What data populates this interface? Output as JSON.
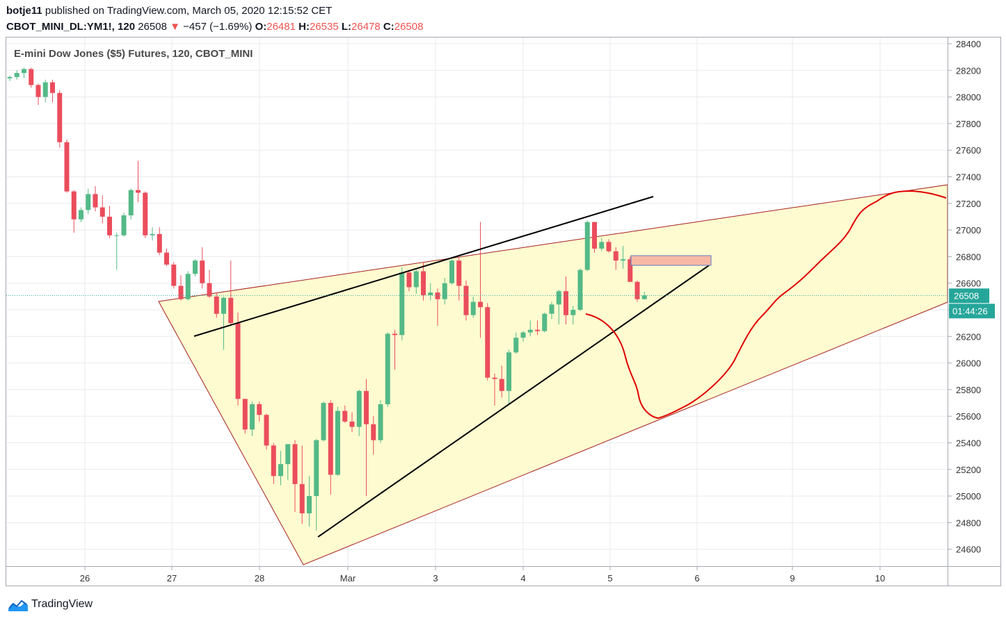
{
  "header": {
    "author": "botje11",
    "published_text": "published on TradingView.com, March 05, 2020 12:15:52 CET",
    "symbol": "CBOT_MINI_DL:YM1!, 120",
    "last": "26508",
    "change": "−457 (−1.69%)",
    "open_label": "O:",
    "open": "26481",
    "high_label": "H:",
    "high": "26535",
    "low_label": "L:",
    "low": "26478",
    "close_label": "C:",
    "close": "26508",
    "down_arrow": "▼"
  },
  "brand": {
    "name": "TradingView"
  },
  "colors": {
    "up": "#26a69a",
    "up_body": "#53b987",
    "down": "#ef5350",
    "down_body": "#eb4d5c",
    "wedge_fill": "#fffbd0",
    "wedge_stroke": "#a31f1f",
    "trend_line": "#000000",
    "forecast": "#e00000",
    "price_label": "#26a69a",
    "zone_fill": "#f7b9a5",
    "zone_stroke": "#5c7cc7"
  },
  "chart_data": {
    "type": "candlestick",
    "title": "E-mini Dow Jones ($5) Futures, 120, CBOT_MINI",
    "y_ticks": [
      28400,
      28200,
      28000,
      27800,
      27600,
      27400,
      27200,
      27000,
      26800,
      26600,
      26400,
      26200,
      26000,
      25800,
      25600,
      25400,
      25200,
      25000,
      24800,
      24600
    ],
    "ylim": [
      24490,
      28450
    ],
    "x_tick_labels": [
      "26",
      "27",
      "28",
      "Mar",
      "3",
      "4",
      "5",
      "6",
      "9",
      "10"
    ],
    "current_price": "26508",
    "countdown": "01:44:26",
    "candles": [
      [
        28140,
        28160,
        28120,
        28150
      ],
      [
        28150,
        28200,
        28130,
        28180
      ],
      [
        28180,
        28220,
        28140,
        28210
      ],
      [
        28210,
        28220,
        28070,
        28090
      ],
      [
        28090,
        28100,
        27940,
        28000
      ],
      [
        28000,
        28130,
        27960,
        28110
      ],
      [
        28110,
        28130,
        27960,
        28030
      ],
      [
        28030,
        28050,
        27620,
        27660
      ],
      [
        27660,
        27680,
        27280,
        27290
      ],
      [
        27290,
        27300,
        26980,
        27080
      ],
      [
        27080,
        27170,
        27060,
        27150
      ],
      [
        27150,
        27310,
        27120,
        27270
      ],
      [
        27270,
        27330,
        27140,
        27170
      ],
      [
        27170,
        27260,
        27050,
        27100
      ],
      [
        27100,
        27180,
        26940,
        26960
      ],
      [
        26960,
        26980,
        26700,
        26960
      ],
      [
        26960,
        27130,
        26950,
        27110
      ],
      [
        27110,
        27310,
        27080,
        27300
      ],
      [
        27300,
        27520,
        27210,
        27280
      ],
      [
        27280,
        27290,
        26940,
        26960
      ],
      [
        26960,
        27020,
        26920,
        26970
      ],
      [
        26970,
        27020,
        26810,
        26830
      ],
      [
        26830,
        26860,
        26730,
        26740
      ],
      [
        26740,
        26760,
        26560,
        26580
      ],
      [
        26580,
        26660,
        26470,
        26480
      ],
      [
        26480,
        26690,
        26470,
        26670
      ],
      [
        26670,
        26780,
        26650,
        26770
      ],
      [
        26770,
        26870,
        26560,
        26600
      ],
      [
        26600,
        26700,
        26490,
        26500
      ],
      [
        26500,
        26530,
        26340,
        26370
      ],
      [
        26370,
        26500,
        26100,
        26490
      ],
      [
        26490,
        26770,
        26290,
        26300
      ],
      [
        26300,
        26380,
        25680,
        25730
      ],
      [
        25730,
        25730,
        25470,
        25500
      ],
      [
        25500,
        25710,
        25450,
        25690
      ],
      [
        25690,
        25710,
        25560,
        25610
      ],
      [
        25610,
        25620,
        25350,
        25380
      ],
      [
        25380,
        25400,
        25090,
        25150
      ],
      [
        25150,
        25340,
        25080,
        25240
      ],
      [
        25240,
        25370,
        25120,
        25390
      ],
      [
        25390,
        25420,
        24880,
        25090
      ],
      [
        25090,
        25380,
        24790,
        24870
      ],
      [
        24870,
        25150,
        24770,
        25000
      ],
      [
        25000,
        25430,
        24740,
        25420
      ],
      [
        25420,
        25710,
        25410,
        25700
      ],
      [
        25700,
        25720,
        25010,
        25160
      ],
      [
        25160,
        25670,
        25150,
        25640
      ],
      [
        25640,
        25680,
        25550,
        25560
      ],
      [
        25560,
        25630,
        25480,
        25520
      ],
      [
        25520,
        25800,
        25450,
        25790
      ],
      [
        25790,
        25880,
        25000,
        25540
      ],
      [
        25540,
        25600,
        25310,
        25420
      ],
      [
        25420,
        25720,
        25400,
        25690
      ],
      [
        25690,
        26230,
        25670,
        26220
      ],
      [
        26220,
        26250,
        25950,
        26210
      ],
      [
        26210,
        26720,
        26170,
        26680
      ],
      [
        26680,
        26700,
        26540,
        26570
      ],
      [
        26570,
        26710,
        26520,
        26690
      ],
      [
        26690,
        26760,
        26470,
        26510
      ],
      [
        26510,
        26600,
        26470,
        26530
      ],
      [
        26530,
        26560,
        26280,
        26480
      ],
      [
        26480,
        26640,
        26440,
        26600
      ],
      [
        26600,
        26780,
        26590,
        26770
      ],
      [
        26770,
        26790,
        26470,
        26580
      ],
      [
        26580,
        26620,
        26320,
        26360
      ],
      [
        26360,
        26500,
        26340,
        26460
      ],
      [
        26460,
        27060,
        26190,
        26420
      ],
      [
        26420,
        26450,
        25870,
        25890
      ],
      [
        25890,
        25920,
        25680,
        25880
      ],
      [
        25880,
        25980,
        25740,
        25790
      ],
      [
        25790,
        26100,
        25690,
        26080
      ],
      [
        26080,
        26230,
        26070,
        26190
      ],
      [
        26190,
        26240,
        26160,
        26230
      ],
      [
        26230,
        26320,
        26200,
        26250
      ],
      [
        26250,
        26320,
        26210,
        26240
      ],
      [
        26240,
        26380,
        26230,
        26370
      ],
      [
        26370,
        26460,
        26330,
        26440
      ],
      [
        26440,
        26550,
        26290,
        26540
      ],
      [
        26540,
        26650,
        26290,
        26360
      ],
      [
        26360,
        26430,
        26290,
        26400
      ],
      [
        26400,
        26710,
        26390,
        26700
      ],
      [
        26700,
        27070,
        26690,
        27060
      ],
      [
        27060,
        27060,
        26830,
        26860
      ],
      [
        26860,
        26940,
        26840,
        26910
      ],
      [
        26910,
        26930,
        26830,
        26840
      ],
      [
        26840,
        26870,
        26700,
        26770
      ],
      [
        26770,
        26880,
        26710,
        26780
      ],
      [
        26780,
        26800,
        26620,
        26610
      ],
      [
        26610,
        26620,
        26460,
        26480
      ],
      [
        26480,
        26535,
        26478,
        26508
      ]
    ]
  }
}
